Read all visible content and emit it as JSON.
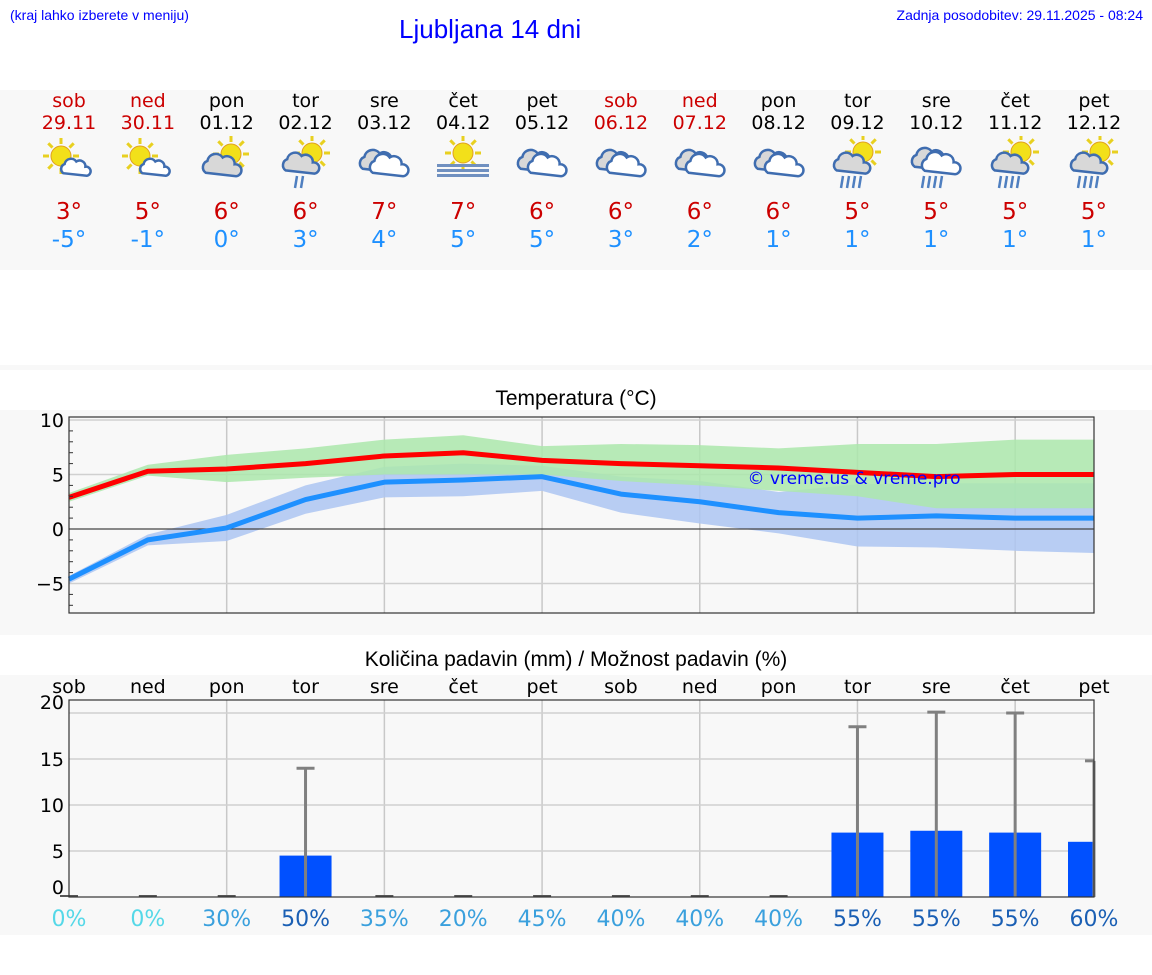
{
  "header": {
    "hint": "(kraj lahko izberete v meniju)",
    "title": "Ljubljana 14 dni",
    "updated": "Zadnja posodobitev: 29.11.2025 - 08:24"
  },
  "colors": {
    "weekend": "#cc0000",
    "weekday": "#000000",
    "tmax": "#cc0000",
    "tmin": "#1e90ff",
    "max_band": "#abe8ab",
    "min_band": "#adc6f2",
    "max_line": "#ff0000",
    "min_line": "#1e90ff",
    "bar": "#0050ff",
    "error": "#808080",
    "watermark": "#0000ff"
  },
  "days": [
    {
      "name": "sob",
      "date": "29.11",
      "weekend": true,
      "icon": "sun-small-cloud",
      "tmax": "3°",
      "tmin": "-5°"
    },
    {
      "name": "ned",
      "date": "30.11",
      "weekend": true,
      "icon": "sun-small-cloud",
      "tmax": "5°",
      "tmin": "-1°"
    },
    {
      "name": "pon",
      "date": "01.12",
      "weekend": false,
      "icon": "sun-cloud",
      "tmax": "6°",
      "tmin": "0°"
    },
    {
      "name": "tor",
      "date": "02.12",
      "weekend": false,
      "icon": "sun-cloud-drizzle",
      "tmax": "6°",
      "tmin": "3°"
    },
    {
      "name": "sre",
      "date": "03.12",
      "weekend": false,
      "icon": "cloudy",
      "tmax": "7°",
      "tmin": "4°"
    },
    {
      "name": "čet",
      "date": "04.12",
      "weekend": false,
      "icon": "sun-fog",
      "tmax": "7°",
      "tmin": "5°"
    },
    {
      "name": "pet",
      "date": "05.12",
      "weekend": false,
      "icon": "cloudy",
      "tmax": "6°",
      "tmin": "5°"
    },
    {
      "name": "sob",
      "date": "06.12",
      "weekend": true,
      "icon": "cloudy",
      "tmax": "6°",
      "tmin": "3°"
    },
    {
      "name": "ned",
      "date": "07.12",
      "weekend": true,
      "icon": "cloudy",
      "tmax": "6°",
      "tmin": "2°"
    },
    {
      "name": "pon",
      "date": "08.12",
      "weekend": false,
      "icon": "cloudy",
      "tmax": "6°",
      "tmin": "1°"
    },
    {
      "name": "tor",
      "date": "09.12",
      "weekend": false,
      "icon": "sun-cloud-rain",
      "tmax": "5°",
      "tmin": "1°"
    },
    {
      "name": "sre",
      "date": "10.12",
      "weekend": false,
      "icon": "cloud-rain",
      "tmax": "5°",
      "tmin": "1°"
    },
    {
      "name": "čet",
      "date": "11.12",
      "weekend": false,
      "icon": "sun-cloud-rain",
      "tmax": "5°",
      "tmin": "1°"
    },
    {
      "name": "pet",
      "date": "12.12",
      "weekend": false,
      "icon": "sun-cloud-rain",
      "tmax": "5°",
      "tmin": "1°"
    }
  ],
  "chart_data": [
    {
      "type": "line",
      "title": "Temperatura (°C)",
      "ylim": [
        -7.7,
        10.3
      ],
      "yticks": [
        "10",
        "5",
        "0",
        "−5"
      ],
      "ytick_values": [
        10,
        5,
        0,
        -5
      ],
      "grid": true,
      "watermark": "© vreme.us & vreme.pro",
      "series": [
        {
          "values": [
            2.9,
            5.3,
            5.5,
            6.0,
            6.7,
            7.0,
            6.3,
            6.0,
            5.8,
            5.6,
            5.2,
            4.8,
            5.0,
            5.0
          ],
          "band_high": [
            3.3,
            5.9,
            6.8,
            7.4,
            8.2,
            8.6,
            7.6,
            7.8,
            7.7,
            7.4,
            7.8,
            7.8,
            8.2,
            8.2
          ],
          "band_low": [
            2.5,
            4.9,
            4.3,
            4.7,
            5.0,
            5.0,
            5.0,
            4.4,
            4.0,
            3.5,
            3.0,
            1.9,
            1.9,
            1.9
          ]
        },
        {
          "values": [
            -4.6,
            -1.0,
            0.1,
            2.7,
            4.3,
            4.5,
            4.8,
            3.2,
            2.5,
            1.5,
            1.0,
            1.2,
            1.0,
            1.0
          ],
          "band_high": [
            -4.3,
            -0.5,
            1.3,
            4.0,
            5.7,
            6.0,
            5.8,
            4.8,
            4.4,
            3.4,
            4.1,
            4.2,
            4.2,
            4.2
          ],
          "band_low": [
            -5.0,
            -1.5,
            -1.1,
            1.4,
            2.9,
            3.0,
            3.5,
            1.5,
            0.5,
            -0.4,
            -1.6,
            -1.7,
            -2.0,
            -2.2
          ]
        }
      ]
    },
    {
      "type": "bar",
      "title": "Količina padavin (mm) / Možnost padavin (%)",
      "ylim": [
        0,
        21.4
      ],
      "yticks": [
        "20",
        "15",
        "10",
        "5",
        "0"
      ],
      "ytick_values": [
        20,
        15,
        10,
        5,
        0
      ],
      "grid": true,
      "categories": [
        "sob",
        "ned",
        "pon",
        "tor",
        "sre",
        "čet",
        "pet",
        "sob",
        "ned",
        "pon",
        "tor",
        "sre",
        "čet",
        "pet"
      ],
      "values": [
        0,
        0,
        0,
        4.5,
        0,
        0,
        0,
        0,
        0,
        0,
        7.0,
        7.2,
        7.0,
        6.0
      ],
      "error_high": [
        0,
        0,
        0,
        14.0,
        0,
        0,
        0,
        0,
        0,
        0,
        18.5,
        20.1,
        20.0,
        14.8
      ],
      "probability": [
        "0%",
        "0%",
        "30%",
        "50%",
        "35%",
        "20%",
        "45%",
        "40%",
        "40%",
        "40%",
        "55%",
        "55%",
        "55%",
        "60%"
      ],
      "probability_values": [
        0,
        0,
        30,
        50,
        35,
        20,
        45,
        40,
        40,
        40,
        55,
        55,
        55,
        60
      ]
    }
  ]
}
